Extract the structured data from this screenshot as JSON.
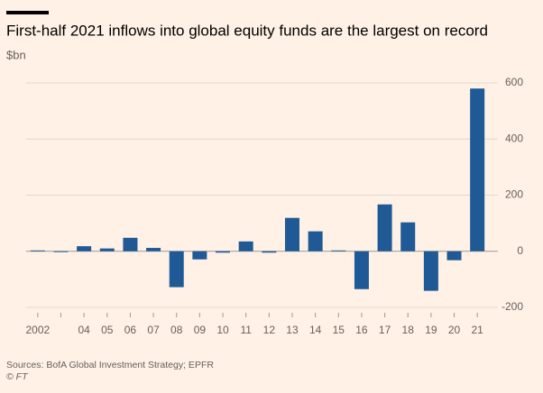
{
  "chart_data": {
    "type": "bar",
    "title": "First-half 2021 inflows into global equity funds are the largest on record",
    "subtitle": "$bn",
    "source": "Sources: BofA Global Investment Strategy; EPFR",
    "credit": "© FT",
    "categories": [
      "2002",
      null,
      "04",
      "05",
      "06",
      "07",
      "08",
      "09",
      "10",
      "11",
      "12",
      "13",
      "14",
      "15",
      "16",
      "17",
      "18",
      "19",
      "20",
      "21"
    ],
    "values": [
      3,
      -3,
      18,
      10,
      48,
      12,
      -128,
      -29,
      -5,
      35,
      -5,
      119,
      71,
      3,
      -135,
      167,
      103,
      -141,
      -32,
      580
    ],
    "color": "#1f5a96",
    "ylim": [
      -200,
      600
    ],
    "yticks": [
      -200,
      0,
      200,
      400,
      600
    ],
    "grid": true
  }
}
